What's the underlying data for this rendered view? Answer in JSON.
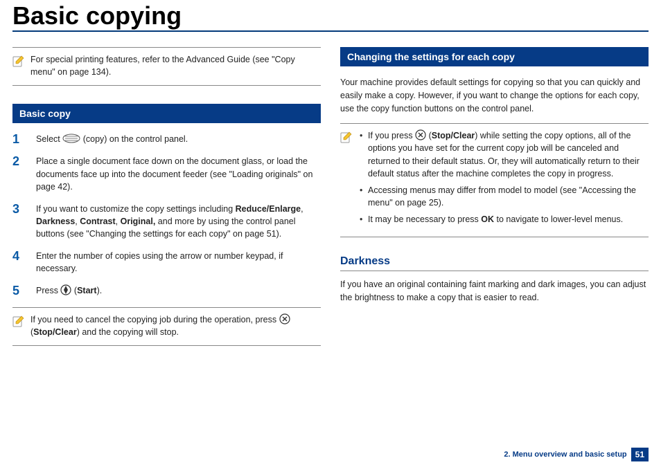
{
  "title": "Basic copying",
  "colors": {
    "brand_blue": "#063b86",
    "step_blue": "#0a5aa6",
    "rule": "#888888",
    "text": "#222222"
  },
  "left": {
    "top_note": "For special printing features, refer to the Advanced Guide (see \"Copy menu\" on page 134).",
    "section1_title": "Basic copy",
    "steps": [
      {
        "n": "1",
        "pre": "Select ",
        "icon": "copy",
        "post": "(copy) on the control panel."
      },
      {
        "n": "2",
        "text": "Place a single document face down on the document glass, or load the documents face up into the document feeder (see \"Loading originals\" on page 42)."
      },
      {
        "n": "3",
        "html": "If you want to customize the copy settings including <b>Reduce/Enlarge</b>, <b>Darkness</b>, <b>Contrast</b>, <b>Original,</b> and more by using the control panel buttons (see \"Changing the settings for each copy\" on page 51)."
      },
      {
        "n": "4",
        "text": "Enter the number of copies using the arrow or number keypad, if necessary."
      },
      {
        "n": "5",
        "pre": "Press ",
        "icon": "start",
        "post_html": "(<b>Start</b>)."
      }
    ],
    "bottom_note_pre": "If you need to cancel the copying job during the operation, press ",
    "bottom_note_post_html": " (<b>Stop/Clear</b>) and the copying will stop."
  },
  "right": {
    "section1_title": "Changing the settings for each copy",
    "intro": "Your machine provides default settings for copying so that you can quickly and easily make a copy. However, if you want to change the options for each copy, use the copy function buttons on the control panel.",
    "note_items": [
      {
        "pre": "If you press ",
        "icon": "stop",
        "post_html": "(<b>Stop/Clear</b>) while setting the copy options, all of the options you have set for the current copy job will be canceled and returned to their default status. Or, they will automatically return to their default status after the machine completes the copy in progress."
      },
      {
        "text": "Accessing menus may differ from model to model (see \"Accessing the menu\" on page 25)."
      },
      {
        "html": "It may be necessary to press <b>OK</b> to navigate to lower-level menus."
      }
    ],
    "subhead": "Darkness",
    "darkness_para": "If you have an original containing faint marking and dark images, you can adjust the brightness to make a copy that is easier to read."
  },
  "footer": {
    "chapter": "2. Menu overview and basic setup",
    "page": "51"
  }
}
